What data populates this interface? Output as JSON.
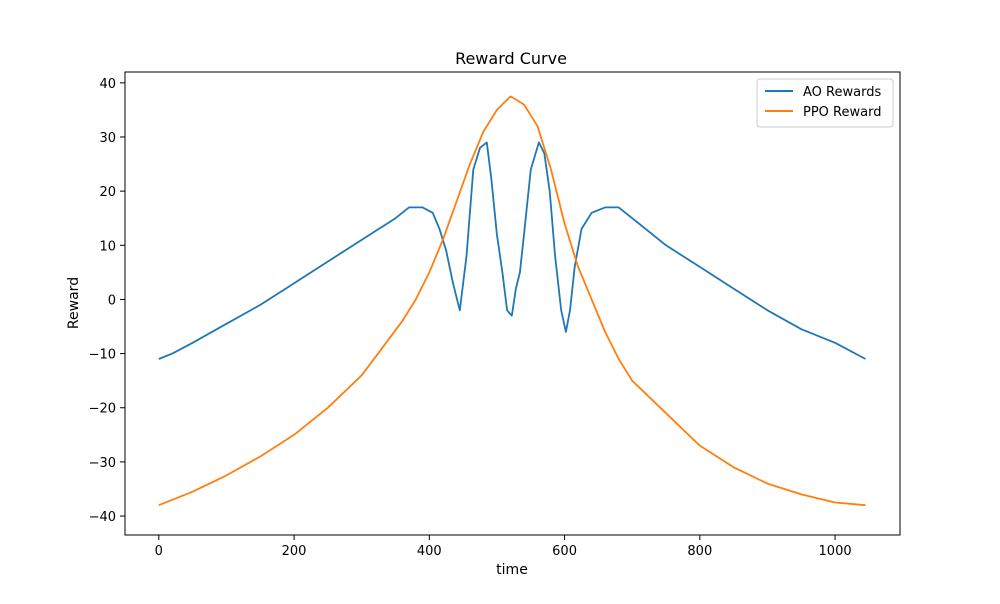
{
  "chart_data": {
    "type": "line",
    "title": "Reward Curve",
    "xlabel": "time",
    "ylabel": "Reward",
    "xlim": [
      -50,
      1096
    ],
    "ylim": [
      -43.5,
      42
    ],
    "xticks": [
      0,
      200,
      400,
      600,
      800,
      1000
    ],
    "yticks": [
      -40,
      -30,
      -20,
      -10,
      0,
      10,
      20,
      30,
      40
    ],
    "xtick_labels": [
      "0",
      "200",
      "400",
      "600",
      "800",
      "1000"
    ],
    "ytick_labels": [
      "−40",
      "−30",
      "−20",
      "−10",
      "0",
      "10",
      "20",
      "30",
      "40"
    ],
    "grid": false,
    "legend_position": "top-right",
    "series": [
      {
        "name": "AO Rewards",
        "color": "#1f77b4",
        "x": [
          0,
          20,
          50,
          100,
          150,
          200,
          250,
          300,
          350,
          370,
          390,
          405,
          415,
          425,
          435,
          445,
          455,
          465,
          475,
          485,
          492,
          500,
          508,
          515,
          522,
          528,
          534,
          540,
          550,
          562,
          570,
          578,
          586,
          595,
          602,
          608,
          615,
          625,
          640,
          660,
          680,
          700,
          750,
          800,
          850,
          900,
          950,
          1000,
          1045
        ],
        "y": [
          -11,
          -10,
          -8,
          -4.5,
          -1,
          3,
          7,
          11,
          15,
          17,
          17,
          16,
          13,
          9,
          3,
          -2,
          8,
          24,
          28,
          29,
          22,
          12,
          5,
          -2,
          -3,
          2,
          5,
          12,
          24,
          29,
          27,
          20,
          8,
          -2,
          -6,
          -2,
          6,
          13,
          16,
          17,
          17,
          15,
          10,
          6,
          2,
          -2,
          -5.5,
          -8,
          -11
        ]
      },
      {
        "name": "PPO Reward",
        "color": "#ff7f0e",
        "x": [
          0,
          50,
          100,
          150,
          200,
          250,
          300,
          330,
          360,
          380,
          400,
          420,
          440,
          460,
          480,
          500,
          520,
          540,
          560,
          580,
          600,
          620,
          640,
          660,
          680,
          700,
          750,
          800,
          850,
          900,
          950,
          1000,
          1045
        ],
        "y": [
          -38,
          -35.5,
          -32.5,
          -29,
          -25,
          -20,
          -14,
          -9,
          -4,
          0,
          5,
          11,
          18,
          25,
          31,
          35,
          37.5,
          36,
          32,
          24,
          14,
          6,
          0,
          -6,
          -11,
          -15,
          -21,
          -27,
          -31,
          -34,
          -36,
          -37.5,
          -38
        ]
      }
    ]
  }
}
